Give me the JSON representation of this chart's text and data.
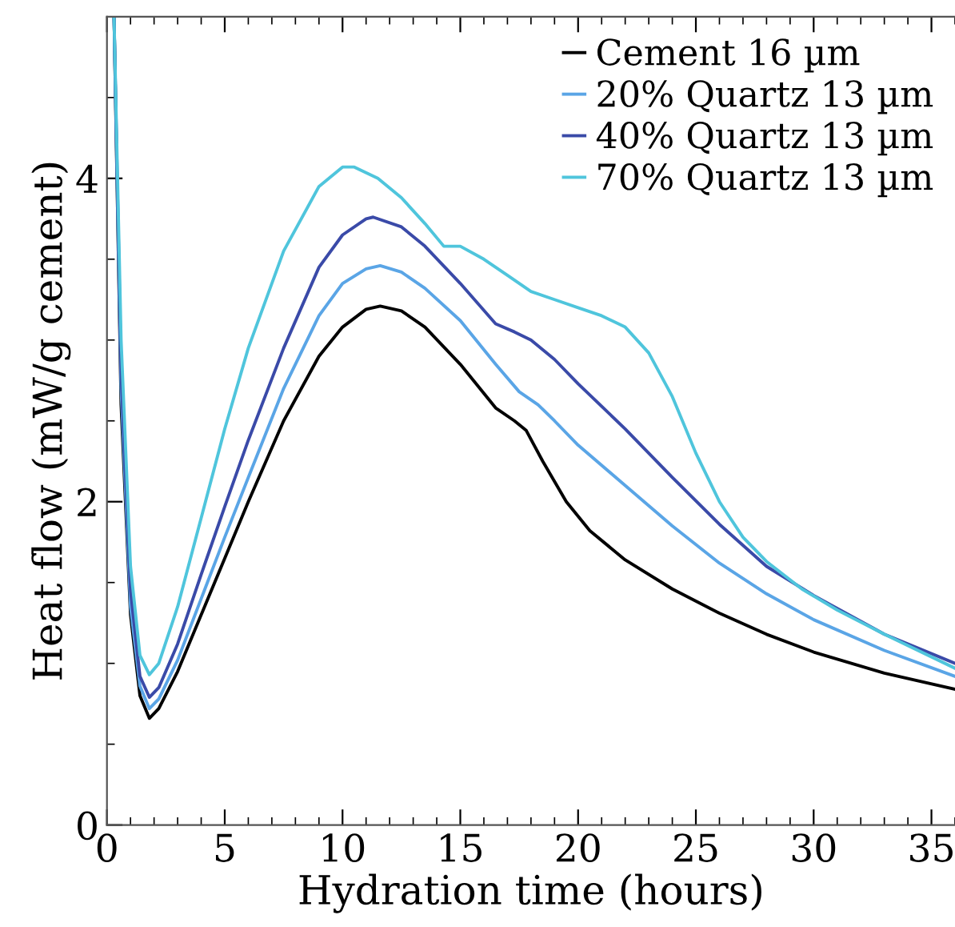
{
  "chart_data": {
    "type": "line",
    "xlabel": "Hydration time (hours)",
    "ylabel": "Heat flow (mW/g cement)",
    "xlim": [
      0,
      36
    ],
    "ylim": [
      0,
      5
    ],
    "xticks": [
      0,
      5,
      10,
      15,
      20,
      25,
      30,
      35
    ],
    "yticks": [
      0,
      2,
      4
    ],
    "legend": "top right",
    "grid": false,
    "marker": "none",
    "line_style": "solid",
    "series": [
      {
        "name": "Cement 16 µm",
        "color": "#000000",
        "x": [
          0.3,
          0.6,
          1.0,
          1.4,
          1.8,
          2.2,
          3,
          4,
          5,
          6,
          7.5,
          9,
          10,
          11,
          11.6,
          12.5,
          13.5,
          15,
          16.5,
          17.3,
          17.8,
          18.5,
          19.5,
          20.5,
          22,
          24,
          26,
          28,
          30,
          33,
          36
        ],
        "values": [
          5,
          2.6,
          1.3,
          0.8,
          0.66,
          0.72,
          0.95,
          1.3,
          1.65,
          2.0,
          2.5,
          2.9,
          3.08,
          3.19,
          3.21,
          3.18,
          3.08,
          2.85,
          2.58,
          2.5,
          2.44,
          2.25,
          2.0,
          1.82,
          1.64,
          1.46,
          1.31,
          1.18,
          1.07,
          0.94,
          0.84
        ]
      },
      {
        "name": "20% Quartz 13 µm",
        "color": "#5aa5e6",
        "x": [
          0.3,
          0.6,
          1.0,
          1.4,
          1.8,
          2.2,
          3,
          4,
          5,
          6,
          7.5,
          9,
          10,
          11,
          11.6,
          12.5,
          13.5,
          15,
          16.5,
          17.5,
          18.3,
          19,
          20,
          22,
          24,
          26,
          28,
          30,
          33,
          36
        ],
        "values": [
          5,
          2.7,
          1.35,
          0.86,
          0.72,
          0.78,
          1.02,
          1.4,
          1.78,
          2.15,
          2.7,
          3.15,
          3.35,
          3.44,
          3.46,
          3.42,
          3.32,
          3.12,
          2.85,
          2.68,
          2.6,
          2.5,
          2.35,
          2.1,
          1.85,
          1.62,
          1.43,
          1.27,
          1.08,
          0.92
        ]
      },
      {
        "name": "40% Quartz 13 µm",
        "color": "#3a4aa8",
        "x": [
          0.3,
          0.6,
          1.0,
          1.4,
          1.8,
          2.2,
          3,
          4,
          5,
          6,
          7.5,
          9,
          10,
          11,
          11.3,
          12.5,
          13.5,
          15,
          16.5,
          17.3,
          18,
          19,
          20,
          22,
          24,
          26,
          28,
          30,
          33,
          36
        ],
        "values": [
          5,
          2.8,
          1.45,
          0.92,
          0.79,
          0.85,
          1.12,
          1.55,
          1.97,
          2.38,
          2.95,
          3.45,
          3.65,
          3.75,
          3.76,
          3.7,
          3.58,
          3.35,
          3.1,
          3.05,
          3.0,
          2.88,
          2.73,
          2.45,
          2.15,
          1.86,
          1.6,
          1.42,
          1.18,
          1.0
        ]
      },
      {
        "name": "70% Quartz 13 µm",
        "color": "#4fc5dc",
        "x": [
          0.3,
          0.6,
          1.0,
          1.4,
          1.8,
          2.2,
          3,
          4,
          5,
          6,
          7.5,
          9,
          10,
          10.5,
          11.5,
          12.5,
          13.5,
          14.3,
          15,
          16,
          17,
          18,
          19,
          20,
          21,
          22,
          23,
          24,
          25,
          26,
          27,
          28,
          29.5,
          31,
          33,
          36
        ],
        "values": [
          5,
          3.0,
          1.6,
          1.05,
          0.93,
          1.0,
          1.35,
          1.9,
          2.45,
          2.95,
          3.55,
          3.95,
          4.07,
          4.07,
          4.0,
          3.88,
          3.72,
          3.58,
          3.58,
          3.5,
          3.4,
          3.3,
          3.25,
          3.2,
          3.15,
          3.08,
          2.92,
          2.65,
          2.3,
          2.0,
          1.78,
          1.63,
          1.46,
          1.33,
          1.18,
          0.97
        ]
      }
    ]
  }
}
